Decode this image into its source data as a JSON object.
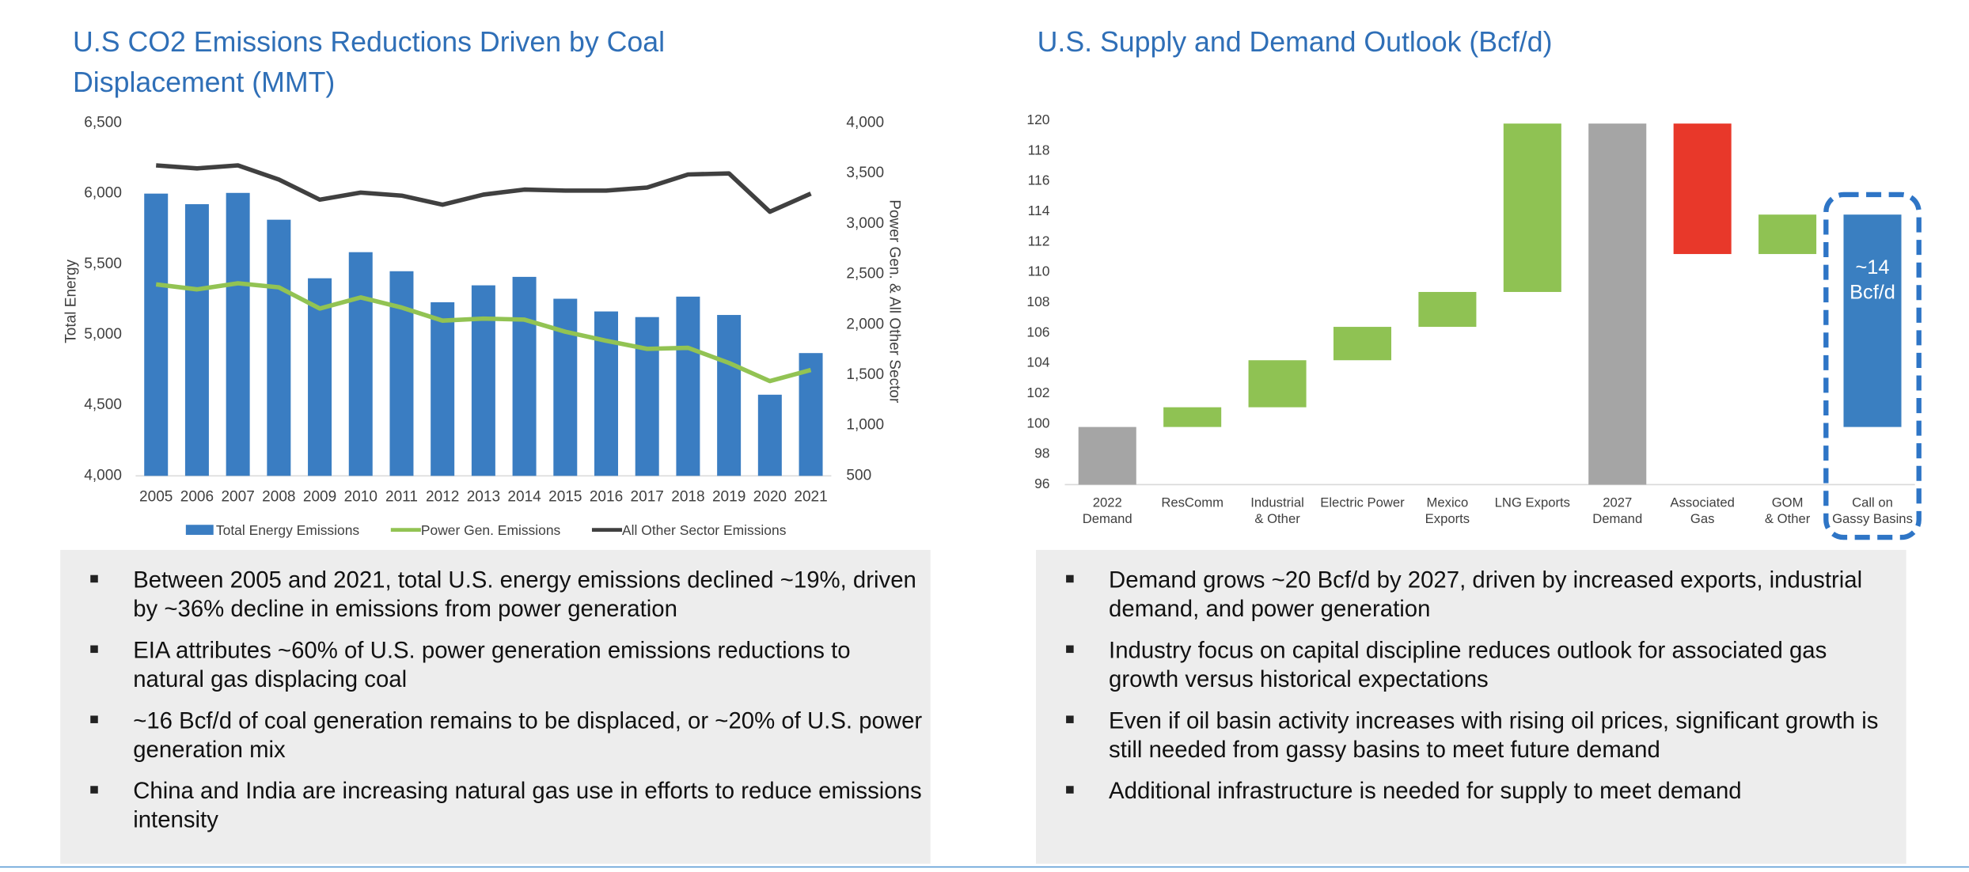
{
  "chart_data": [
    {
      "type": "bar",
      "title": "U.S CO2 Emissions Reductions Driven by Coal Displacement (MMT)",
      "ylabel": "Total Energy",
      "y2label": "Power Gen. & All Other Sector",
      "categories": [
        "2005",
        "2006",
        "2007",
        "2008",
        "2009",
        "2010",
        "2011",
        "2012",
        "2013",
        "2014",
        "2015",
        "2016",
        "2017",
        "2018",
        "2019",
        "2020",
        "2021"
      ],
      "series": [
        {
          "name": "Total Energy Emissions",
          "color": "#3a7dc2",
          "values": [
            6000,
            5925,
            6005,
            5815,
            5400,
            5585,
            5450,
            5230,
            5350,
            5410,
            5255,
            5165,
            5125,
            5270,
            5140,
            4575,
            4870
          ]
        },
        {
          "name": "Power Gen. Emissions",
          "type": "line",
          "axis": "y2",
          "color": "#92c353",
          "values": [
            2400,
            2350,
            2410,
            2370,
            2160,
            2270,
            2170,
            2040,
            2060,
            2050,
            1930,
            1840,
            1760,
            1770,
            1620,
            1440,
            1550
          ]
        },
        {
          "name": "All Other Sector Emissions",
          "type": "line",
          "axis": "y2",
          "color": "#404040",
          "values": [
            3580,
            3550,
            3580,
            3440,
            3240,
            3310,
            3280,
            3190,
            3290,
            3340,
            3330,
            3330,
            3360,
            3490,
            3500,
            3120,
            3300
          ]
        }
      ],
      "ylim": [
        4000,
        6500
      ],
      "yticks": [
        {
          "value": 4000,
          "label": "4,000"
        },
        {
          "value": 4500,
          "label": "4,500"
        },
        {
          "value": 5000,
          "label": "5,000"
        },
        {
          "value": 5500,
          "label": "5,500"
        },
        {
          "value": 6000,
          "label": "6,000"
        },
        {
          "value": 6500,
          "label": "6,500"
        }
      ],
      "y2lim": [
        500,
        4000
      ],
      "y2ticks": [
        500,
        {
          "value": 1000,
          "label": "1,000"
        },
        {
          "value": 1500,
          "label": "1,500"
        },
        {
          "value": 2000,
          "label": "2,000"
        },
        {
          "value": 2500,
          "label": "2,500"
        },
        {
          "value": 3000,
          "label": "3,000"
        },
        {
          "value": 3500,
          "label": "3,500"
        },
        {
          "value": 4000,
          "label": "4,000"
        }
      ],
      "legend": "bottom"
    },
    {
      "type": "waterfall",
      "title": "U.S. Supply and Demand Outlook (Bcf/d)",
      "categories": [
        "2022\nDemand",
        "ResComm",
        "Industrial\n& Other",
        "Electric Power",
        "Mexico\nExports",
        "LNG Exports",
        "2027\nDemand",
        "Associated\nGas",
        "GOM\n& Other",
        "Call on\nGassy Basins"
      ],
      "low": [
        null,
        99.8,
        101.1,
        104.2,
        106.4,
        108.7,
        null,
        111.2,
        111.2,
        99.8
      ],
      "high": [
        99.8,
        101.1,
        104.2,
        106.4,
        108.7,
        119.8,
        119.8,
        119.8,
        113.8,
        113.8
      ],
      "colors": [
        "#a5a5a5",
        "#8fc253",
        "#8fc253",
        "#8fc253",
        "#8fc253",
        "#8fc253",
        "#a5a5a5",
        "#e8382a",
        "#8fc253",
        "#3a7fc1"
      ],
      "ylim": [
        96,
        120
      ],
      "yticks": [
        96,
        98,
        100,
        102,
        104,
        106,
        108,
        110,
        112,
        114,
        116,
        118,
        120
      ],
      "annotation": "~14\nBcf/d"
    }
  ],
  "bullets": {
    "left": [
      "Between 2005 and 2021, total U.S. energy emissions declined ~19%, driven by ~36% decline in emissions from power generation",
      "EIA attributes ~60% of U.S. power generation emissions reductions to natural gas displacing coal",
      "~16 Bcf/d of coal generation remains to be displaced, or ~20% of U.S. power generation mix",
      "China and India are increasing natural gas use in efforts to reduce emissions intensity"
    ],
    "right": [
      "Demand grows ~20 Bcf/d by 2027, driven by increased exports, industrial demand, and power generation",
      "Industry focus on capital discipline reduces outlook for associated gas growth versus historical expectations",
      "Even if oil basin activity increases with rising oil prices, significant growth is still needed from gassy basins to meet future demand",
      "Additional infrastructure is needed for supply to meet demand"
    ]
  }
}
